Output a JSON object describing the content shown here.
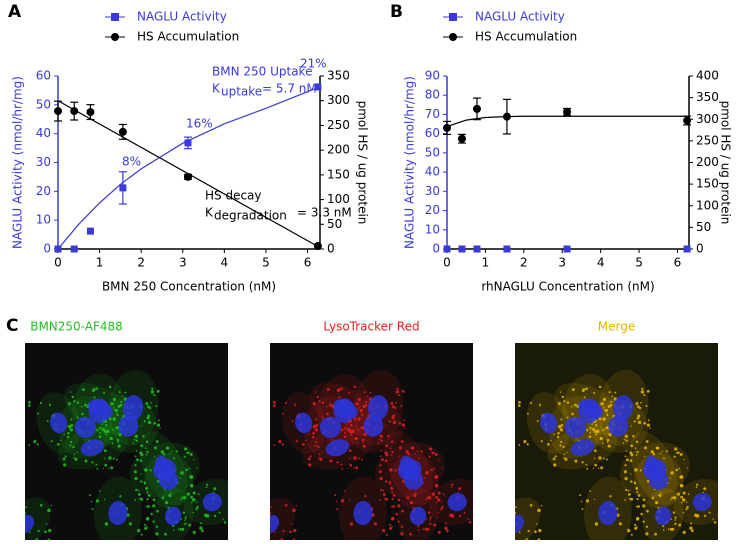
{
  "panel_labels": [
    "A",
    "B",
    "C"
  ],
  "chart_data": [
    {
      "type": "scatter",
      "xlabel": "BMN 250 Concentration (nM)",
      "ylabel": "NAGLU Activity (nmol/hr/mg)",
      "y2label": "pmol HS / ug protein",
      "xlim": [
        0,
        6.3
      ],
      "xticks": [
        0,
        1,
        2,
        3,
        4,
        5,
        6
      ],
      "ylim": [
        0,
        60
      ],
      "yticks": [
        0,
        10,
        20,
        30,
        40,
        50,
        60
      ],
      "y2lim": [
        0,
        350
      ],
      "y2ticks": [
        0,
        50,
        100,
        150,
        200,
        250,
        300,
        350
      ],
      "legend": "top",
      "series": [
        {
          "name": "NAGLU Activity",
          "color": "#3a3ad6",
          "marker": "square",
          "x": [
            0,
            0.39,
            0.78,
            1.56,
            3.125,
            6.25
          ],
          "values": [
            0,
            0,
            6.2,
            21.2,
            36.8,
            56.2
          ],
          "errors": [
            0,
            0,
            0,
            5.6,
            2,
            0
          ],
          "fit": {
            "x": [
              0,
              0.5,
              1,
              1.5,
              2,
              3,
              4,
              5,
              6.25
            ],
            "values": [
              0,
              8.6,
              16,
              22.4,
              27.8,
              36.7,
              43.4,
              48.8,
              56
            ]
          }
        },
        {
          "name": "HS Accumulation",
          "color": "#000000",
          "marker": "circle",
          "axis": "y2",
          "x": [
            0,
            0.39,
            0.78,
            1.56,
            3.125,
            6.25
          ],
          "values": [
            279,
            279,
            277,
            237,
            146,
            6
          ],
          "errors": [
            20,
            18,
            15,
            15,
            5,
            0
          ],
          "fit": {
            "x": [
              0,
              6.25
            ],
            "values": [
              300,
              5
            ]
          }
        }
      ],
      "annotations": [
        "8%",
        "16%",
        "21%",
        "BMN 250 Uptake",
        "K",
        "uptake",
        " = 5.7 nM",
        "HS decay",
        "K",
        "degradation",
        " = 3.3 nM"
      ]
    },
    {
      "type": "scatter",
      "xlabel": "rhNAGLU Concentration (nM)",
      "ylabel": "NAGLU Activity (nmol/hr/mg)",
      "y2label": "pmol HS / ug protein",
      "xlim": [
        0,
        6.3
      ],
      "xticks": [
        0,
        1,
        2,
        3,
        4,
        5,
        6
      ],
      "ylim": [
        0,
        90
      ],
      "yticks": [
        0,
        10,
        20,
        30,
        40,
        50,
        60,
        70,
        80,
        90
      ],
      "y2lim": [
        0,
        400
      ],
      "y2ticks": [
        0,
        50,
        100,
        150,
        200,
        250,
        300,
        350,
        400
      ],
      "legend": "top",
      "series": [
        {
          "name": "NAGLU Activity",
          "color": "#3a3ad6",
          "marker": "square",
          "x": [
            0,
            0.39,
            0.78,
            1.56,
            3.125,
            6.25
          ],
          "values": [
            0,
            0,
            0,
            0,
            0,
            0
          ],
          "errors": [
            0,
            0,
            0,
            0,
            0,
            0
          ]
        },
        {
          "name": "HS Accumulation",
          "color": "#000000",
          "marker": "circle",
          "axis": "y2",
          "x": [
            0,
            0.39,
            0.78,
            1.56,
            3.125,
            6.25
          ],
          "values": [
            280,
            255,
            324,
            306,
            317,
            297
          ],
          "errors": [
            15,
            10,
            25,
            40,
            8,
            10
          ],
          "fit": {
            "x": [
              0,
              0.5,
              1,
              1.5,
              2,
              3,
              4,
              5,
              6.25
            ],
            "values": [
              283,
              298,
              304,
              306,
              307,
              307,
              307,
              307,
              307
            ]
          }
        }
      ],
      "annotations": []
    }
  ],
  "images": [
    {
      "label": "BMN250-AF488",
      "color": "#22c122"
    },
    {
      "label": "LysoTracker Red",
      "color": "#e02020"
    },
    {
      "label": "Merge",
      "color": "#e8b400"
    }
  ]
}
